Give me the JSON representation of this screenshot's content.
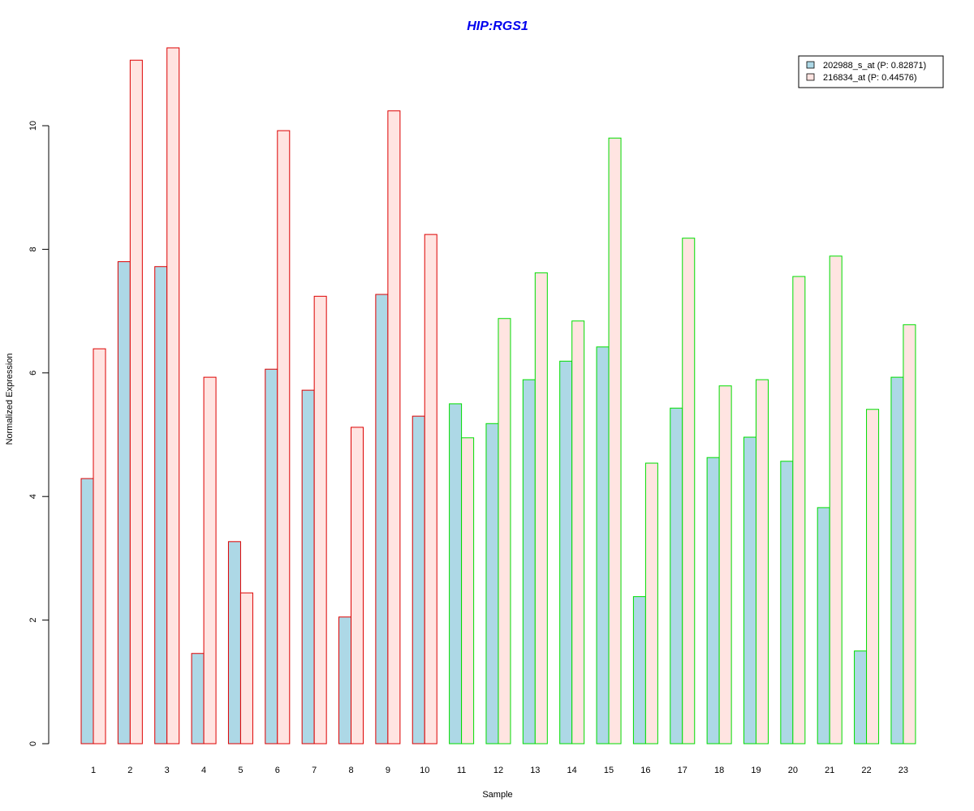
{
  "chart_data": {
    "type": "bar",
    "title": "HIP:RGS1",
    "xlabel": "Sample",
    "ylabel": "Normalized Expression",
    "ylim": [
      0,
      11.3
    ],
    "yticks": [
      0,
      2,
      4,
      6,
      8,
      10
    ],
    "categories": [
      "1",
      "2",
      "3",
      "4",
      "5",
      "6",
      "7",
      "8",
      "9",
      "10",
      "11",
      "12",
      "13",
      "14",
      "15",
      "16",
      "17",
      "18",
      "19",
      "20",
      "21",
      "22",
      "23"
    ],
    "group_border_colors": [
      "#dd0000",
      "#dd0000",
      "#dd0000",
      "#dd0000",
      "#dd0000",
      "#dd0000",
      "#dd0000",
      "#dd0000",
      "#dd0000",
      "#dd0000",
      "#00dd00",
      "#00dd00",
      "#00dd00",
      "#00dd00",
      "#00dd00",
      "#00dd00",
      "#00dd00",
      "#00dd00",
      "#00dd00",
      "#00dd00",
      "#00dd00",
      "#00dd00",
      "#00dd00"
    ],
    "series": [
      {
        "name": "202988_s_at (P: 0.82871)",
        "color": "#add8e6",
        "values": [
          4.29,
          7.8,
          7.72,
          1.46,
          3.27,
          6.06,
          5.72,
          2.05,
          7.27,
          5.3,
          5.5,
          5.18,
          5.89,
          6.19,
          6.42,
          2.38,
          5.43,
          4.63,
          4.96,
          4.57,
          3.82,
          1.5,
          5.93
        ]
      },
      {
        "name": "216834_at (P: 0.44576)",
        "color": "#ffe4e1",
        "values": [
          6.39,
          11.06,
          11.26,
          5.93,
          2.44,
          9.92,
          7.24,
          5.12,
          10.24,
          8.24,
          4.95,
          6.88,
          7.62,
          6.84,
          9.8,
          4.54,
          8.18,
          5.79,
          5.89,
          7.56,
          7.89,
          5.41,
          6.78
        ]
      }
    ],
    "legend_position": "top-right",
    "grid": false
  }
}
